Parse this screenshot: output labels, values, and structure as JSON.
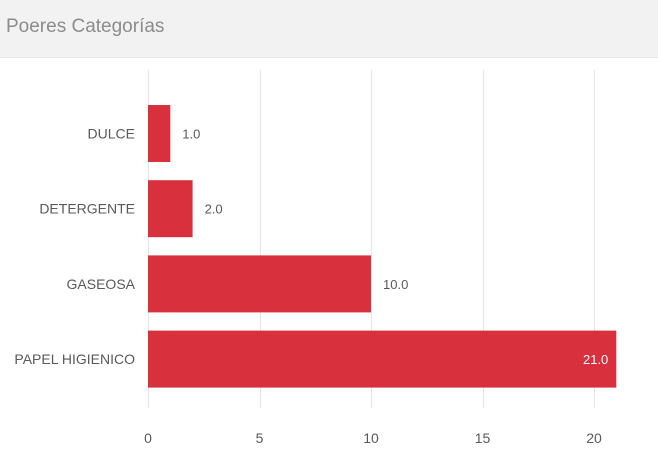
{
  "panel": {
    "title": "Poeres Categorías"
  },
  "chart_data": {
    "type": "bar",
    "orientation": "horizontal",
    "title": "Poeres Categorías",
    "categories": [
      "DULCE",
      "DETERGENTE",
      "GASEOSA",
      "PAPEL HIGIENICO"
    ],
    "values": [
      1.0,
      2.0,
      10.0,
      21.0
    ],
    "value_labels": [
      "1.0",
      "2.0",
      "10.0",
      "21.0"
    ],
    "x_ticks": [
      0,
      5,
      10,
      15,
      20
    ],
    "xlim": [
      0,
      21
    ],
    "grid": true,
    "legend": "none",
    "bar_color": "#d9303e"
  }
}
